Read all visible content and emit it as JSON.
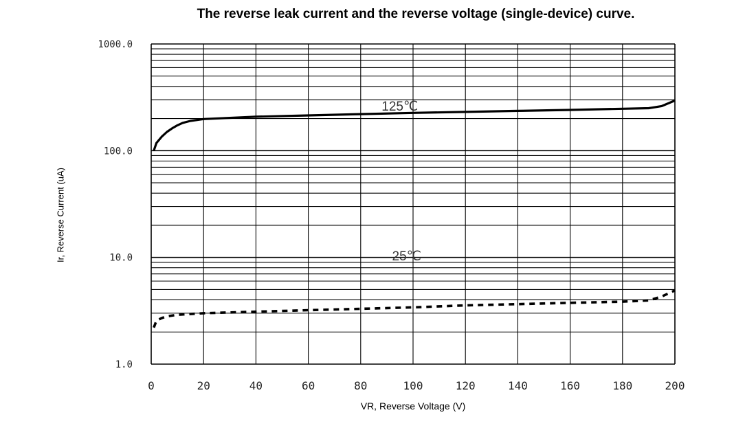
{
  "chart_data": {
    "type": "line",
    "title": "The reverse leak current and the reverse voltage (single-device) curve.",
    "xlabel": "VR, Reverse Voltage (V)",
    "ylabel": "Ir, Reverse Current (uA)",
    "xlim": [
      0,
      200
    ],
    "ylim": [
      1,
      1000
    ],
    "yscale": "log",
    "grid": true,
    "x_ticks": [
      "0",
      "20",
      "40",
      "60",
      "80",
      "100",
      "120",
      "140",
      "160",
      "180",
      "200"
    ],
    "y_ticks": [
      "1.0",
      "10.0",
      "100.0",
      "1000.0"
    ],
    "y_tick_values": [
      1,
      10,
      100,
      1000
    ],
    "series": [
      {
        "name": "125℃",
        "style": "solid",
        "x": [
          1,
          2,
          4,
          6,
          8,
          10,
          12,
          15,
          20,
          40,
          60,
          80,
          100,
          120,
          140,
          160,
          180,
          190,
          195,
          200
        ],
        "y": [
          100,
          118,
          135,
          150,
          162,
          173,
          182,
          190,
          198,
          208,
          214,
          220,
          226,
          231,
          236,
          241,
          247,
          250,
          262,
          295
        ]
      },
      {
        "name": "25℃",
        "style": "dashed",
        "x": [
          1,
          2,
          4,
          6,
          10,
          20,
          40,
          60,
          80,
          100,
          120,
          140,
          160,
          180,
          190,
          195,
          200
        ],
        "y": [
          2.2,
          2.55,
          2.7,
          2.8,
          2.9,
          3.0,
          3.1,
          3.2,
          3.3,
          3.4,
          3.55,
          3.65,
          3.75,
          3.85,
          3.95,
          4.3,
          4.9
        ]
      }
    ]
  },
  "colors": {
    "line": "#000000",
    "grid": "#000000",
    "background": "#ffffff"
  }
}
